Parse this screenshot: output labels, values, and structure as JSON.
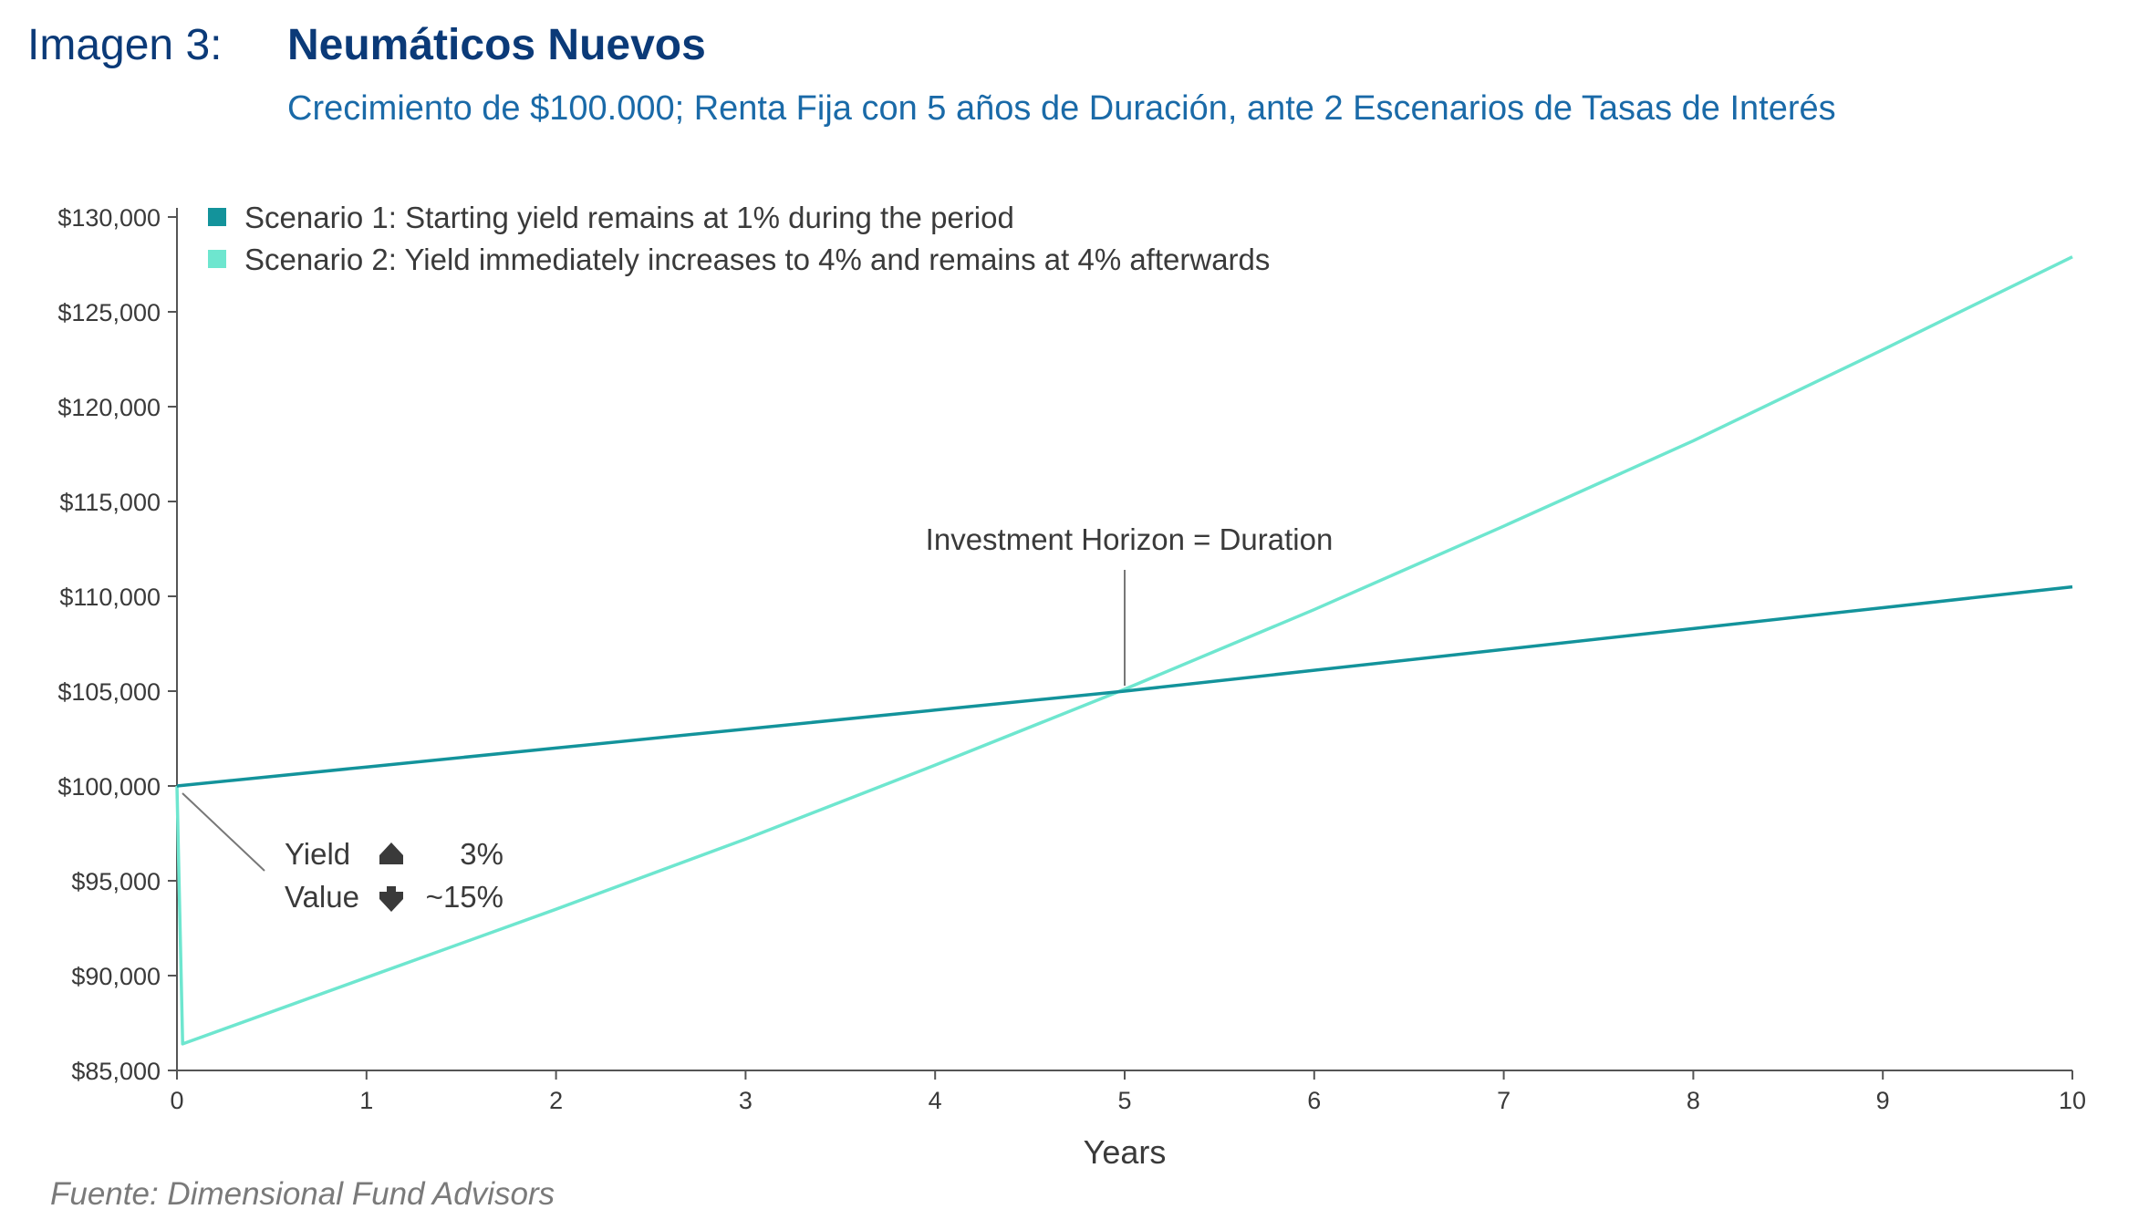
{
  "header": {
    "label": "Imagen 3:",
    "title": "Neumáticos Nuevos",
    "subtitle": "Crecimiento de $100.000; Renta Fija con 5 años de Duración, ante 2 Escenarios de Tasas de Interés"
  },
  "source": "Fuente: Dimensional Fund Advisors",
  "annotations": {
    "horizon": "Investment Horizon = Duration",
    "yield_label": "Yield",
    "yield_value": "3%",
    "value_label": "Value",
    "value_value": "~15%",
    "up_icon": "arrow-up-icon",
    "down_icon": "arrow-down-icon"
  },
  "chart_data": {
    "type": "line",
    "xlabel": "Years",
    "ylabel": "",
    "xlim": [
      0,
      10
    ],
    "ylim": [
      85000,
      130000
    ],
    "x_ticks": [
      0,
      1,
      2,
      3,
      4,
      5,
      6,
      7,
      8,
      9,
      10
    ],
    "y_ticks": [
      85000,
      90000,
      95000,
      100000,
      105000,
      110000,
      115000,
      120000,
      125000,
      130000
    ],
    "y_tick_labels": [
      "$85,000",
      "$90,000",
      "$95,000",
      "$100,000",
      "$105,000",
      "$110,000",
      "$115,000",
      "$120,000",
      "$125,000",
      "$130,000"
    ],
    "legend_position": "top-left",
    "series": [
      {
        "name": "Scenario 1: Starting yield remains at 1% during the period",
        "color": "#13939b",
        "x": [
          0,
          1,
          2,
          3,
          4,
          5,
          6,
          7,
          8,
          9,
          10
        ],
        "y": [
          100000,
          101000,
          102000,
          103000,
          104000,
          105000,
          106100,
          107200,
          108300,
          109400,
          110500
        ]
      },
      {
        "name": "Scenario 2: Yield immediately increases to 4% and remains at 4% afterwards",
        "color": "#6ee6cf",
        "x": [
          0,
          0.03,
          1,
          2,
          3,
          4,
          5,
          6,
          7,
          8,
          9,
          10
        ],
        "y": [
          100000,
          86400,
          89900,
          93500,
          97200,
          101100,
          105100,
          109300,
          113700,
          118200,
          123000,
          127900
        ]
      }
    ]
  }
}
